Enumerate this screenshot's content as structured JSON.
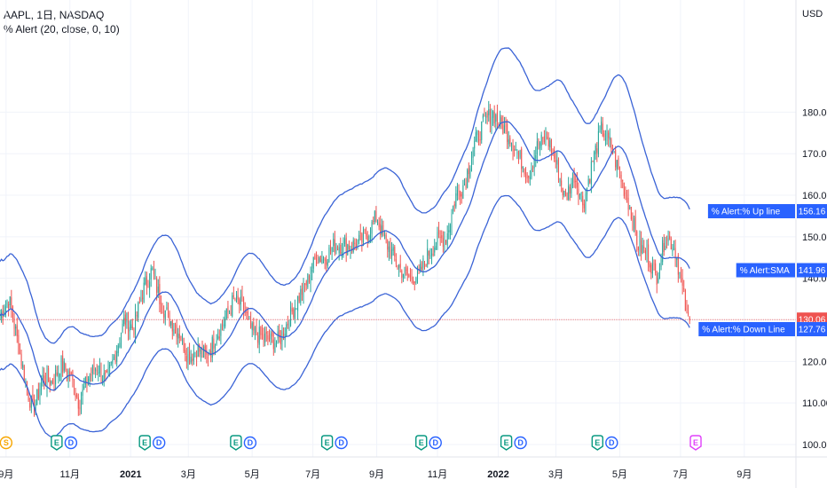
{
  "header": {
    "symbol_line": "AAPL, 1日, NASDAQ",
    "indicator_line": "% Alert (20, close, 0, 10)"
  },
  "colors": {
    "up": "#26a69a",
    "down": "#ef5350",
    "band": "#3a63d6",
    "pill": "#2962ff",
    "price_pill": "#ef5350",
    "earnings": "#089981",
    "dividend": "#2962ff",
    "split": "#f7a600",
    "future_event": "#e040fb"
  },
  "chart_data": {
    "type": "candlestick",
    "title": "AAPL, 1日, NASDAQ",
    "y_unit": "USD",
    "ylim": [
      97,
      207
    ],
    "y_ticks": [
      100,
      110,
      120,
      130,
      140,
      150,
      160,
      170,
      180
    ],
    "y_tick_labels": [
      "100.00",
      "110.00",
      "120.00",
      "130.00",
      "140.00",
      "150.00",
      "160.00",
      "170.00",
      "180.00"
    ],
    "x_ticks": [
      {
        "label": "9月",
        "t": 0.2,
        "bold": false
      },
      {
        "label": "11月",
        "t": 2.3,
        "bold": false
      },
      {
        "label": "2021",
        "t": 4.3,
        "bold": true
      },
      {
        "label": "3月",
        "t": 6.2,
        "bold": false
      },
      {
        "label": "5月",
        "t": 8.3,
        "bold": false
      },
      {
        "label": "7月",
        "t": 10.3,
        "bold": false
      },
      {
        "label": "9月",
        "t": 12.4,
        "bold": false
      },
      {
        "label": "11月",
        "t": 14.4,
        "bold": false
      },
      {
        "label": "2022",
        "t": 16.4,
        "bold": true
      },
      {
        "label": "3月",
        "t": 18.3,
        "bold": false
      },
      {
        "label": "5月",
        "t": 20.4,
        "bold": false
      },
      {
        "label": "7月",
        "t": 22.4,
        "bold": false
      },
      {
        "label": "9月",
        "t": 24.5,
        "bold": false
      }
    ],
    "x_range_months": [
      0,
      26.2
    ],
    "close_path": [
      [
        0.0,
        131
      ],
      [
        0.3,
        135
      ],
      [
        0.6,
        124
      ],
      [
        0.9,
        113
      ],
      [
        1.1,
        108
      ],
      [
        1.4,
        116
      ],
      [
        1.7,
        115
      ],
      [
        2.0,
        119
      ],
      [
        2.3,
        117
      ],
      [
        2.6,
        110
      ],
      [
        2.9,
        116
      ],
      [
        3.2,
        119
      ],
      [
        3.5,
        115
      ],
      [
        3.8,
        122
      ],
      [
        4.1,
        130
      ],
      [
        4.4,
        128
      ],
      [
        4.7,
        137
      ],
      [
        5.0,
        142
      ],
      [
        5.3,
        134
      ],
      [
        5.6,
        130
      ],
      [
        5.9,
        127
      ],
      [
        6.2,
        121
      ],
      [
        6.5,
        123
      ],
      [
        6.8,
        121
      ],
      [
        7.1,
        126
      ],
      [
        7.4,
        130
      ],
      [
        7.7,
        135
      ],
      [
        8.0,
        133
      ],
      [
        8.3,
        127
      ],
      [
        8.6,
        126
      ],
      [
        8.9,
        125
      ],
      [
        9.2,
        125
      ],
      [
        9.5,
        130
      ],
      [
        9.8,
        135
      ],
      [
        10.1,
        139
      ],
      [
        10.4,
        145
      ],
      [
        10.7,
        145
      ],
      [
        11.0,
        148
      ],
      [
        11.3,
        148
      ],
      [
        11.6,
        148
      ],
      [
        11.9,
        149
      ],
      [
        12.2,
        152
      ],
      [
        12.4,
        155
      ],
      [
        12.6,
        150
      ],
      [
        12.9,
        146
      ],
      [
        13.2,
        142
      ],
      [
        13.5,
        140
      ],
      [
        13.8,
        141
      ],
      [
        14.1,
        146
      ],
      [
        14.4,
        149
      ],
      [
        14.7,
        150
      ],
      [
        15.0,
        160
      ],
      [
        15.3,
        163
      ],
      [
        15.6,
        172
      ],
      [
        15.9,
        177
      ],
      [
        16.2,
        180
      ],
      [
        16.5,
        177
      ],
      [
        16.8,
        174
      ],
      [
        17.1,
        169
      ],
      [
        17.4,
        165
      ],
      [
        17.7,
        172
      ],
      [
        18.0,
        174
      ],
      [
        18.3,
        168
      ],
      [
        18.6,
        159
      ],
      [
        18.9,
        165
      ],
      [
        19.2,
        158
      ],
      [
        19.5,
        168
      ],
      [
        19.8,
        176
      ],
      [
        20.1,
        172
      ],
      [
        20.4,
        165
      ],
      [
        20.7,
        158
      ],
      [
        21.0,
        148
      ],
      [
        21.3,
        146
      ],
      [
        21.6,
        140
      ],
      [
        21.9,
        150
      ],
      [
        22.2,
        148
      ],
      [
        22.5,
        136
      ],
      [
        22.6,
        131
      ],
      [
        22.7,
        130.06
      ]
    ],
    "series": [
      {
        "name": "% Alert:% Up line",
        "last": 156.16
      },
      {
        "name": "% Alert:SMA",
        "last": 141.96
      },
      {
        "name": "% Alert:% Down Line",
        "last": 127.76
      }
    ],
    "last_price": 130.06,
    "last_price_label": "130.06",
    "events": [
      {
        "t": 0.2,
        "letters": [
          "S"
        ],
        "kinds": [
          "split"
        ]
      },
      {
        "t": 2.1,
        "letters": [
          "E",
          "D"
        ],
        "kinds": [
          "earnings",
          "dividend"
        ]
      },
      {
        "t": 5.0,
        "letters": [
          "E",
          "D"
        ],
        "kinds": [
          "earnings",
          "dividend"
        ]
      },
      {
        "t": 8.0,
        "letters": [
          "E",
          "D"
        ],
        "kinds": [
          "earnings",
          "dividend"
        ]
      },
      {
        "t": 11.0,
        "letters": [
          "E",
          "D"
        ],
        "kinds": [
          "earnings",
          "dividend"
        ]
      },
      {
        "t": 14.1,
        "letters": [
          "E",
          "D"
        ],
        "kinds": [
          "earnings",
          "dividend"
        ]
      },
      {
        "t": 16.9,
        "letters": [
          "E",
          "D"
        ],
        "kinds": [
          "earnings",
          "dividend"
        ]
      },
      {
        "t": 19.9,
        "letters": [
          "E",
          "D"
        ],
        "kinds": [
          "earnings",
          "dividend"
        ]
      },
      {
        "t": 22.9,
        "letters": [
          "E"
        ],
        "kinds": [
          "future_event"
        ]
      }
    ]
  }
}
